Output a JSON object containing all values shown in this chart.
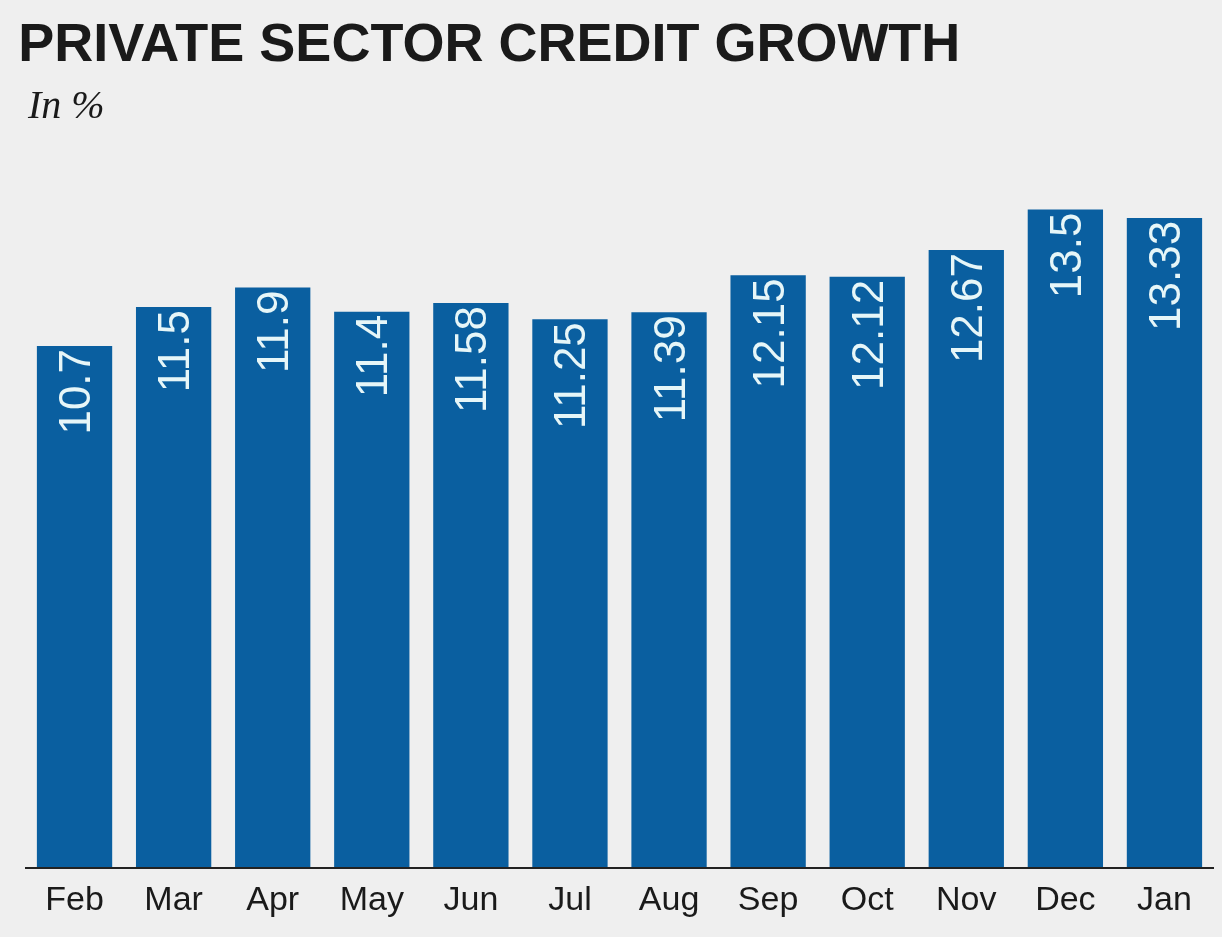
{
  "chart_data": {
    "type": "bar",
    "title": "PRIVATE SECTOR CREDIT GROWTH",
    "subtitle": "In %",
    "categories": [
      "Feb",
      "Mar",
      "Apr",
      "May",
      "Jun",
      "Jul",
      "Aug",
      "Sep",
      "Oct",
      "Nov",
      "Dec",
      "Jan"
    ],
    "values": [
      10.7,
      11.5,
      11.9,
      11.4,
      11.58,
      11.25,
      11.39,
      12.15,
      12.12,
      12.67,
      13.5,
      13.33
    ],
    "color": "#0a5fa0",
    "data_labels": true,
    "grid": false,
    "legend": false,
    "tick_labels": "x"
  }
}
